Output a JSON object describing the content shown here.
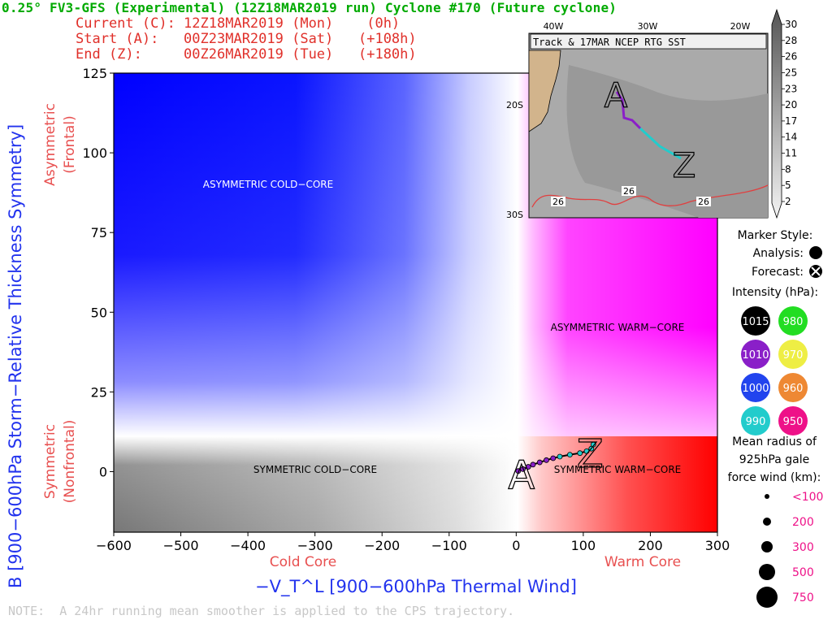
{
  "header": {
    "title": "0.25° FV3-GFS (Experimental) (12Z18MAR2019 run) Cyclone #170 (Future cyclone)",
    "current": "Current (C): 12Z18MAR2019 (Mon)    (0h)",
    "start": "Start (A):   00Z23MAR2019 (Sat)   (+108h)",
    "end": "End (Z):     00Z26MAR2019 (Tue)   (+180h)"
  },
  "note": "NOTE:  A 24hr running mean smoother is applied to the CPS trajectory.",
  "inset": {
    "title": "Track & 17MAR NCEP RTG SST",
    "lon_labels": [
      "40W",
      "30W",
      "20W"
    ],
    "lat_labels": [
      "20S",
      "30S"
    ],
    "sst_labels": [
      "26",
      "26",
      "26"
    ],
    "colorbar_labels": [
      "30",
      "28",
      "26",
      "25",
      "23",
      "20",
      "17",
      "14",
      "11",
      "8",
      "5",
      "2"
    ],
    "track_start": "A",
    "track_end": "Z"
  },
  "legend": {
    "marker_style_title": "Marker Style:",
    "analysis": "Analysis:",
    "forecast": "Forecast:",
    "intensity_title": "Intensity (hPa):",
    "intensity": [
      {
        "value": "1015",
        "color": "#000000",
        "text_color": "#ffffff"
      },
      {
        "value": "980",
        "color": "#22dd22",
        "text_color": "#ffffff"
      },
      {
        "value": "1010",
        "color": "#8a1fc8",
        "text_color": "#ffffff"
      },
      {
        "value": "970",
        "color": "#eeee44",
        "text_color": "#ffffff"
      },
      {
        "value": "1000",
        "color": "#2244ee",
        "text_color": "#ffffff"
      },
      {
        "value": "960",
        "color": "#ee8833",
        "text_color": "#ffffff"
      },
      {
        "value": "990",
        "color": "#22cccc",
        "text_color": "#ffffff"
      },
      {
        "value": "950",
        "color": "#ee1188",
        "text_color": "#ffffff"
      }
    ],
    "radius_title_1": "Mean radius of",
    "radius_title_2": "925hPa gale",
    "radius_title_3": "force wind (km):",
    "radius": [
      "<100",
      "200",
      "300",
      "500",
      "750"
    ]
  },
  "chart_data": {
    "type": "scatter",
    "title": "",
    "xlabel": "−V_T^L [900−600hPa Thermal Wind]",
    "ylabel": "B [900−600hPa Storm−Relative Thickness Symmetry]",
    "xlim": [
      -600,
      300
    ],
    "ylim": [
      -19,
      125
    ],
    "xticks": [
      -600,
      -500,
      -400,
      -300,
      -200,
      -100,
      0,
      100,
      200,
      300
    ],
    "xtick_labels": [
      "−600",
      "−500",
      "−400",
      "−300",
      "−200",
      "−100",
      "0",
      "100",
      "200",
      "300"
    ],
    "yticks": [
      0,
      25,
      50,
      75,
      100,
      125
    ],
    "ytick_labels": [
      "0",
      "25",
      "50",
      "75",
      "100",
      "125"
    ],
    "x_secondary_labels": {
      "cold": "Cold Core",
      "warm": "Warm Core"
    },
    "y_secondary_labels": {
      "upper": [
        "Asymmetric",
        "(Frontal)"
      ],
      "lower": [
        "Symmetric",
        "(Nonfrontal)"
      ]
    },
    "regions": {
      "asym_cold": "ASYMMETRIC COLD−CORE",
      "asym_warm": "ASYMMETRIC WARM−CORE",
      "sym_cold": "SYMMETRIC COLD−CORE",
      "sym_warm": "SYMMETRIC WARM−CORE"
    },
    "symmetry_threshold": 10,
    "series": [
      {
        "x": [
          3,
          10,
          18,
          25,
          35,
          45,
          55,
          65,
          80,
          95,
          105,
          112,
          115
        ],
        "y": [
          0.2,
          0.8,
          1.5,
          2.2,
          2.9,
          3.6,
          4.2,
          4.7,
          5.3,
          5.8,
          6.4,
          7.2,
          8.5
        ],
        "colors": [
          "#8a1fc8",
          "#8a1fc8",
          "#8a1fc8",
          "#8a1fc8",
          "#8a1fc8",
          "#8a1fc8",
          "#8a1fc8",
          "#22cccc",
          "#22cccc",
          "#22cccc",
          "#22cccc",
          "#22cccc",
          "#22cccc"
        ]
      }
    ],
    "start_label": "A",
    "end_label": "Z"
  }
}
